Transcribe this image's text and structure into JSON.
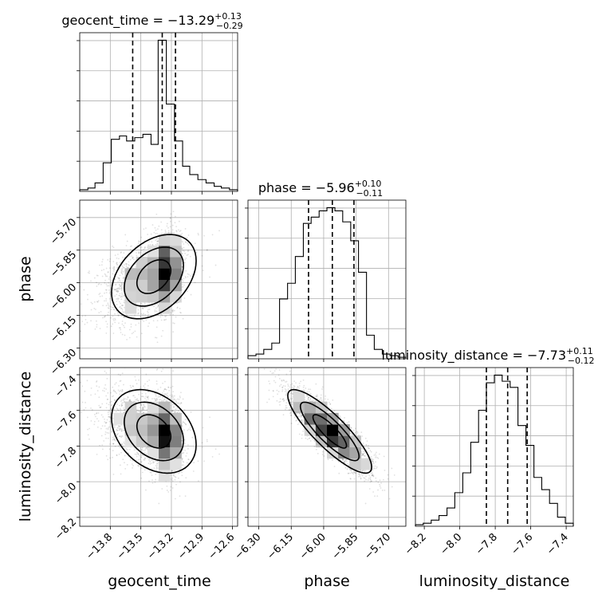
{
  "chart_data": {
    "type": "corner",
    "parameters": [
      "geocent_time",
      "phase",
      "luminosity_distance"
    ],
    "titles": [
      {
        "parameter": "geocent_time",
        "prefix": "geocent_time = −13.29",
        "plus": "+0.13",
        "minus": "−0.29"
      },
      {
        "parameter": "phase",
        "prefix": "phase = −5.96",
        "plus": "+0.10",
        "minus": "−0.11"
      },
      {
        "parameter": "luminosity_distance",
        "prefix": "luminosity_distance = −7.73",
        "plus": "+0.11",
        "minus": "−0.12"
      }
    ],
    "axes": {
      "geocent_time": {
        "lim": [
          -14.1,
          -12.55
        ],
        "ticks": [
          -13.8,
          -13.5,
          -13.2,
          -12.9,
          -12.6
        ],
        "tick_labels": [
          "−13.8",
          "−13.5",
          "−13.2",
          "−12.9",
          "−12.6"
        ]
      },
      "phase": {
        "lim": [
          -6.35,
          -5.62
        ],
        "ticks": [
          -6.3,
          -6.15,
          -6.0,
          -5.85,
          -5.7
        ],
        "tick_labels": [
          "−6.30",
          "−6.15",
          "−6.00",
          "−5.85",
          "−5.70"
        ]
      },
      "luminosity_distance": {
        "lim": [
          -8.25,
          -7.36
        ],
        "ticks": [
          -8.2,
          -8.0,
          -7.8,
          -7.6,
          -7.4
        ],
        "tick_labels": [
          "−8.2",
          "−8.0",
          "−7.8",
          "−7.6",
          "−7.4"
        ]
      }
    },
    "histograms": [
      {
        "parameter": "geocent_time",
        "bins": [
          -14.1,
          -14.02,
          -13.95,
          -13.87,
          -13.79,
          -13.71,
          -13.64,
          -13.56,
          -13.48,
          -13.4,
          -13.33,
          -13.25,
          -13.17,
          -13.09,
          -13.02,
          -12.94,
          -12.86,
          -12.78,
          -12.71,
          -12.63,
          -12.55
        ],
        "counts": [
          1,
          2,
          5,
          17,
          31,
          33,
          30,
          32,
          34,
          28,
          90,
          52,
          30,
          15,
          10,
          7,
          5,
          3,
          2,
          1
        ],
        "quantiles": [
          -13.58,
          -13.29,
          -13.16
        ]
      },
      {
        "parameter": "phase",
        "bins": [
          -6.35,
          -6.313,
          -6.277,
          -6.24,
          -6.204,
          -6.167,
          -6.131,
          -6.094,
          -6.058,
          -6.021,
          -5.985,
          -5.948,
          -5.912,
          -5.875,
          -5.839,
          -5.802,
          -5.766,
          -5.729,
          -5.693,
          -5.656,
          -5.62
        ],
        "counts": [
          2,
          3,
          6,
          10,
          38,
          48,
          65,
          86,
          90,
          94,
          96,
          94,
          87,
          75,
          55,
          15,
          6,
          3,
          2,
          1
        ],
        "quantiles": [
          -6.07,
          -5.96,
          -5.86
        ]
      },
      {
        "parameter": "luminosity_distance",
        "bins": [
          -8.25,
          -8.206,
          -8.161,
          -8.117,
          -8.072,
          -8.028,
          -7.983,
          -7.938,
          -7.894,
          -7.85,
          -7.805,
          -7.761,
          -7.716,
          -7.672,
          -7.627,
          -7.582,
          -7.538,
          -7.494,
          -7.449,
          -7.405,
          -7.36
        ],
        "counts": [
          1,
          2,
          4,
          7,
          12,
          22,
          35,
          55,
          76,
          94,
          99,
          95,
          91,
          66,
          53,
          32,
          24,
          15,
          6,
          2
        ],
        "quantiles": [
          -7.85,
          -7.73,
          -7.62
        ]
      }
    ],
    "pairs": [
      {
        "x": "geocent_time",
        "y": "phase"
      },
      {
        "x": "geocent_time",
        "y": "luminosity_distance"
      },
      {
        "x": "phase",
        "y": "luminosity_distance"
      }
    ]
  }
}
